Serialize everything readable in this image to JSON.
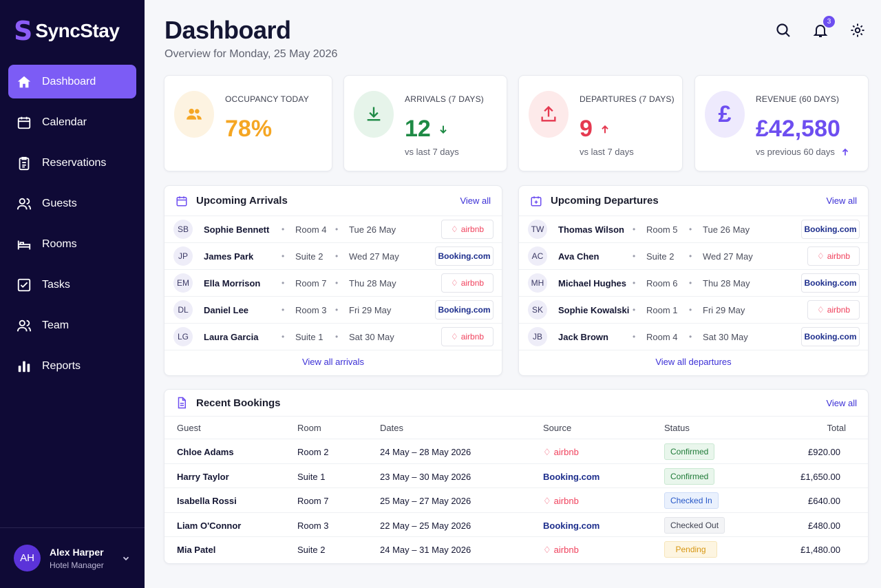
{
  "app": {
    "name": "SyncStay",
    "logo_mark": "S"
  },
  "nav": [
    {
      "label": "Dashboard",
      "icon": "home-icon",
      "active": true
    },
    {
      "label": "Calendar",
      "icon": "calendar-icon"
    },
    {
      "label": "Reservations",
      "icon": "clipboard-icon"
    },
    {
      "label": "Guests",
      "icon": "users-icon"
    },
    {
      "label": "Rooms",
      "icon": "bed-icon"
    },
    {
      "label": "Tasks",
      "icon": "checkbox-icon"
    },
    {
      "label": "Team",
      "icon": "team-icon"
    },
    {
      "label": "Reports",
      "icon": "bar-chart-icon"
    }
  ],
  "user": {
    "initials": "AH",
    "name": "Alex Harper",
    "role": "Hotel Manager"
  },
  "header": {
    "title": "Dashboard",
    "subtitle": "Overview for Monday, 25 May 2026",
    "notification_count": "3"
  },
  "stats": [
    {
      "label": "OCCUPANCY TODAY",
      "value": "78%",
      "sub": "",
      "icon": "users-icon",
      "color": "#f5a623"
    },
    {
      "label": "ARRIVALS (7 DAYS)",
      "value": "12",
      "sub": "vs last 7 days",
      "trend": "down",
      "icon": "download-icon",
      "color": "#1e8a45"
    },
    {
      "label": "DEPARTURES (7 DAYS)",
      "value": "9",
      "sub": "vs last 7 days",
      "trend": "up",
      "icon": "upload-icon",
      "color": "#e53950"
    },
    {
      "label": "REVENUE (60 DAYS)",
      "value": "£42,580",
      "sub": "vs previous 60 days",
      "trend": "up",
      "icon": "pound-icon",
      "color": "#6d4ef0"
    }
  ],
  "arrivals": {
    "title": "Upcoming Arrivals",
    "view_all": "View all",
    "footer": "View all arrivals",
    "rows": [
      {
        "initials": "SB",
        "name": "Sophie Bennett",
        "room": "Room 4",
        "date": "Tue 26 May",
        "source": "airbnb"
      },
      {
        "initials": "JP",
        "name": "James Park",
        "room": "Suite 2",
        "date": "Wed 27 May",
        "source": "Booking.com"
      },
      {
        "initials": "EM",
        "name": "Ella Morrison",
        "room": "Room 7",
        "date": "Thu 28 May",
        "source": "airbnb"
      },
      {
        "initials": "DL",
        "name": "Daniel Lee",
        "room": "Room 3",
        "date": "Fri 29 May",
        "source": "Booking.com"
      },
      {
        "initials": "LG",
        "name": "Laura Garcia",
        "room": "Suite 1",
        "date": "Sat 30 May",
        "source": "airbnb"
      }
    ]
  },
  "departures": {
    "title": "Upcoming Departures",
    "view_all": "View all",
    "footer": "View all departures",
    "rows": [
      {
        "initials": "TW",
        "name": "Thomas Wilson",
        "room": "Room 5",
        "date": "Tue 26 May",
        "source": "Booking.com"
      },
      {
        "initials": "AC",
        "name": "Ava Chen",
        "room": "Suite 2",
        "date": "Wed 27 May",
        "source": "airbnb"
      },
      {
        "initials": "MH",
        "name": "Michael Hughes",
        "room": "Room 6",
        "date": "Thu 28 May",
        "source": "Booking.com"
      },
      {
        "initials": "SK",
        "name": "Sophie Kowalski",
        "room": "Room 1",
        "date": "Fri 29 May",
        "source": "airbnb"
      },
      {
        "initials": "JB",
        "name": "Jack Brown",
        "room": "Room 4",
        "date": "Sat 30 May",
        "source": "Booking.com"
      }
    ]
  },
  "bookings": {
    "title": "Recent Bookings",
    "view_all": "View all",
    "columns": {
      "guest": "Guest",
      "room": "Room",
      "dates": "Dates",
      "source": "Source",
      "status": "Status",
      "total": "Total"
    },
    "rows": [
      {
        "guest": "Chloe Adams",
        "room": "Room 2",
        "dates": "24 May – 28 May 2026",
        "source": "airbnb",
        "status": "Confirmed",
        "total": "£920.00"
      },
      {
        "guest": "Harry Taylor",
        "room": "Suite 1",
        "dates": "23 May – 30 May 2026",
        "source": "Booking.com",
        "status": "Confirmed",
        "total": "£1,650.00"
      },
      {
        "guest": "Isabella Rossi",
        "room": "Room 7",
        "dates": "25 May – 27 May 2026",
        "source": "airbnb",
        "status": "Checked In",
        "total": "£640.00"
      },
      {
        "guest": "Liam O'Connor",
        "room": "Room 3",
        "dates": "22 May – 25 May 2026",
        "source": "Booking.com",
        "status": "Checked Out",
        "total": "£480.00"
      },
      {
        "guest": "Mia Patel",
        "room": "Suite 2",
        "dates": "24 May – 31 May 2026",
        "source": "airbnb",
        "status": "Pending",
        "total": "£1,480.00"
      }
    ]
  }
}
